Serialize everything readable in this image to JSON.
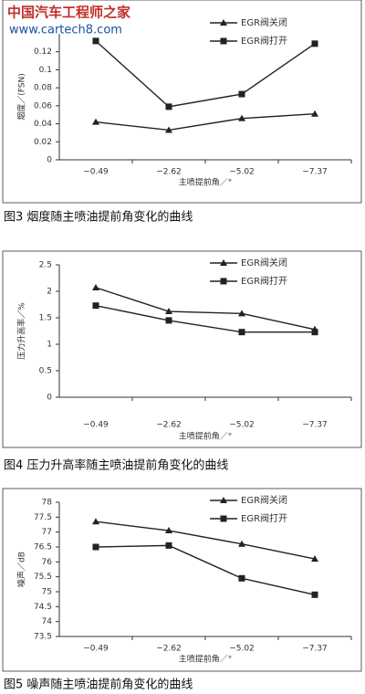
{
  "watermark": {
    "title": "中国汽车工程师之家",
    "url": "www.cartech8.com"
  },
  "chart_data": [
    {
      "type": "line",
      "caption": "图3 烟度随主喷油提前角变化的曲线",
      "x_label": "主喷提前角／°",
      "y_label": "烟度／(FSN)",
      "categories": [
        "−0.49",
        "−2.62",
        "−5.02",
        "−7.37"
      ],
      "series": [
        {
          "name": "EGR阀关闭",
          "color": "#222222",
          "marker": "triangle",
          "values": [
            0.042,
            0.033,
            0.046,
            0.051
          ]
        },
        {
          "name": "EGR阀打开",
          "color": "#222222",
          "marker": "square",
          "values": [
            0.132,
            0.059,
            0.073,
            0.129
          ]
        }
      ],
      "ylim": [
        0,
        0.14
      ],
      "yticks": [
        0,
        0.02,
        0.04,
        0.06,
        0.08,
        0.1,
        0.12
      ],
      "legend": "top-right"
    },
    {
      "type": "line",
      "caption": "图4 压力升高率随主喷油提前角变化的曲线",
      "x_label": "主喷提前角／°",
      "y_label": "压力升高率／%",
      "categories": [
        "−0.49",
        "−2.62",
        "−5.02",
        "−7.37"
      ],
      "series": [
        {
          "name": "EGR阀关闭",
          "color": "#222222",
          "marker": "triangle",
          "values": [
            2.07,
            1.62,
            1.58,
            1.28
          ]
        },
        {
          "name": "EGR阀打开",
          "color": "#222222",
          "marker": "square",
          "values": [
            1.73,
            1.45,
            1.23,
            1.23
          ]
        }
      ],
      "ylim": [
        0,
        2.5
      ],
      "yticks": [
        0,
        0.5,
        1,
        1.5,
        2,
        2.5
      ],
      "legend": "top-right"
    },
    {
      "type": "line",
      "caption": "图5 噪声随主喷油提前角变化的曲线",
      "x_label": "主喷提前角／°",
      "y_label": "噪声／dB",
      "categories": [
        "−0.49",
        "−2.62",
        "−5.02",
        "−7.37"
      ],
      "series": [
        {
          "name": "EGR阀关闭",
          "color": "#222222",
          "marker": "triangle",
          "values": [
            77.35,
            77.05,
            76.6,
            76.1
          ]
        },
        {
          "name": "EGR阀打开",
          "color": "#222222",
          "marker": "square",
          "values": [
            76.5,
            76.55,
            75.45,
            74.9
          ]
        }
      ],
      "ylim": [
        73.5,
        78
      ],
      "yticks": [
        73.5,
        74,
        74.5,
        75,
        75.5,
        76,
        76.5,
        77,
        77.5,
        78
      ],
      "legend": "top-right"
    }
  ]
}
